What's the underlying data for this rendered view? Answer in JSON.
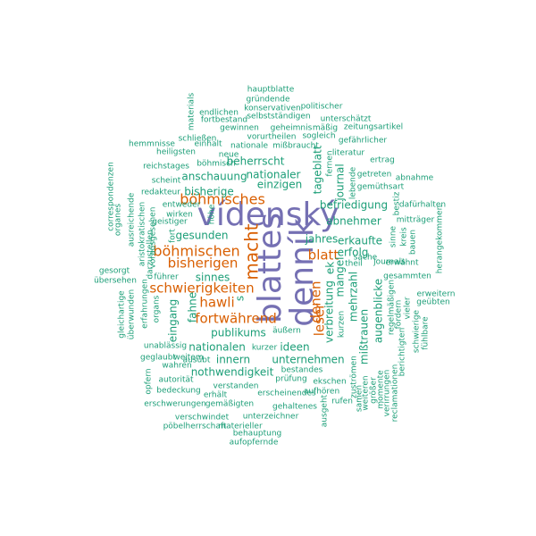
{
  "colors": {
    "purple": "#7570b3",
    "orange": "#d95f02",
    "teal": "#1b9e77",
    "background": "#ffffff"
  },
  "words": [
    {
      "id": "vidensky",
      "text": "vídenský",
      "color": "purple",
      "size": 36,
      "rotate": 0
    },
    {
      "id": "dennik",
      "text": "denník",
      "color": "purple",
      "size": 36,
      "rotate": -90
    },
    {
      "id": "blattes",
      "text": "blattes",
      "color": "purple",
      "size": 36,
      "rotate": -90
    },
    {
      "id": "macht",
      "text": "macht",
      "color": "orange",
      "size": 20,
      "rotate": -90
    },
    {
      "id": "bohmischen",
      "text": "böhmischen",
      "color": "orange",
      "size": 16,
      "rotate": 0
    },
    {
      "id": "bohmisches",
      "text": "böhmisches",
      "color": "orange",
      "size": 16,
      "rotate": 0
    },
    {
      "id": "bisherigen",
      "text": "bisherigen",
      "color": "orange",
      "size": 15,
      "rotate": 0
    },
    {
      "id": "schwierigkeiten",
      "text": "schwierigkeiten",
      "color": "orange",
      "size": 15,
      "rotate": 0
    },
    {
      "id": "hawli",
      "text": "hawli",
      "color": "orange",
      "size": 15,
      "rotate": 0
    },
    {
      "id": "fortwahrend",
      "text": "fortwährend",
      "color": "orange",
      "size": 15,
      "rotate": 0
    },
    {
      "id": "blatt",
      "text": "blatt",
      "color": "orange",
      "size": 15,
      "rotate": 0
    },
    {
      "id": "leser",
      "text": "leser",
      "color": "orange",
      "size": 15,
      "rotate": -90
    },
    {
      "id": "denen",
      "text": "denen",
      "color": "orange",
      "size": 15,
      "rotate": -90
    },
    {
      "id": "hauptblatte",
      "text": "hauptblatte",
      "color": "teal",
      "size": 9,
      "rotate": 0
    },
    {
      "id": "grundende",
      "text": "gründende",
      "color": "teal",
      "size": 9,
      "rotate": 0
    },
    {
      "id": "konservativen",
      "text": "konservativen",
      "color": "teal",
      "size": 9,
      "rotate": 0
    },
    {
      "id": "politischer",
      "text": "politischer",
      "color": "teal",
      "size": 9,
      "rotate": 0
    },
    {
      "id": "endlichen",
      "text": "endlichen",
      "color": "teal",
      "size": 9,
      "rotate": 0
    },
    {
      "id": "selbststandigen",
      "text": "selbstständigen",
      "color": "teal",
      "size": 9,
      "rotate": 0
    },
    {
      "id": "fortbestand",
      "text": "fortbestand",
      "color": "teal",
      "size": 9,
      "rotate": 0
    },
    {
      "id": "gewinnen",
      "text": "gewinnen",
      "color": "teal",
      "size": 9,
      "rotate": 0
    },
    {
      "id": "geheimnis",
      "text": "geheimnis",
      "color": "teal",
      "size": 9,
      "rotate": 0
    },
    {
      "id": "unterschatzt",
      "text": "unterschätzt",
      "color": "teal",
      "size": 9,
      "rotate": 0
    },
    {
      "id": "massig",
      "text": "mäßig",
      "color": "teal",
      "size": 9,
      "rotate": 0
    },
    {
      "id": "zeitungsartikel",
      "text": "zeitungsartikel",
      "color": "teal",
      "size": 9,
      "rotate": 0
    },
    {
      "id": "materials",
      "text": "materials",
      "color": "teal",
      "size": 9,
      "rotate": -90
    },
    {
      "id": "schliessen",
      "text": "schließen",
      "color": "teal",
      "size": 9,
      "rotate": 0
    },
    {
      "id": "vorurtheilen",
      "text": "vorurtheilen",
      "color": "teal",
      "size": 9,
      "rotate": 0
    },
    {
      "id": "sogleich",
      "text": "sogleich",
      "color": "teal",
      "size": 9,
      "rotate": 0
    },
    {
      "id": "gefahrlicher",
      "text": "gefährlicher",
      "color": "teal",
      "size": 9,
      "rotate": 0
    },
    {
      "id": "hemmnisse",
      "text": "hemmnisse",
      "color": "teal",
      "size": 9,
      "rotate": 0
    },
    {
      "id": "einhalt",
      "text": "einhalt",
      "color": "teal",
      "size": 9,
      "rotate": 0
    },
    {
      "id": "nationale",
      "text": "nationale",
      "color": "teal",
      "size": 9,
      "rotate": 0
    },
    {
      "id": "missbraucht",
      "text": "mißbraucht",
      "color": "teal",
      "size": 9,
      "rotate": 0
    },
    {
      "id": "heiligsten",
      "text": "heiligsten",
      "color": "teal",
      "size": 9,
      "rotate": 0
    },
    {
      "id": "neue",
      "text": "neue",
      "color": "teal",
      "size": 9,
      "rotate": 0
    },
    {
      "id": "literatur",
      "text": "literatur",
      "color": "teal",
      "size": 9,
      "rotate": 0
    },
    {
      "id": "ertrag",
      "text": "ertrag",
      "color": "teal",
      "size": 9,
      "rotate": 0
    },
    {
      "id": "reichstages",
      "text": "reichstages",
      "color": "teal",
      "size": 9,
      "rotate": 0
    },
    {
      "id": "bohmisch",
      "text": "böhmisch",
      "color": "teal",
      "size": 9,
      "rotate": 0
    },
    {
      "id": "beherrscht",
      "text": "beherrscht",
      "color": "teal",
      "size": 12,
      "rotate": 0
    },
    {
      "id": "tageblatt",
      "text": "tageblatt",
      "color": "teal",
      "size": 12,
      "rotate": -90
    },
    {
      "id": "fernen",
      "text": "fernen",
      "color": "teal",
      "size": 9,
      "rotate": -90
    },
    {
      "id": "getreten",
      "text": "getreten",
      "color": "teal",
      "size": 9,
      "rotate": 0
    },
    {
      "id": "abnahme",
      "text": "abnahme",
      "color": "teal",
      "size": 9,
      "rotate": 0
    },
    {
      "id": "correspondenzen",
      "text": "correspondenzen",
      "color": "teal",
      "size": 9,
      "rotate": -90
    },
    {
      "id": "scheint",
      "text": "scheint",
      "color": "teal",
      "size": 9,
      "rotate": 0
    },
    {
      "id": "anschauung",
      "text": "anschauung",
      "color": "teal",
      "size": 12,
      "rotate": 0
    },
    {
      "id": "nationaler",
      "text": "nationaler",
      "color": "teal",
      "size": 12,
      "rotate": 0
    },
    {
      "id": "journal",
      "text": "journal",
      "color": "teal",
      "size": 12,
      "rotate": -90
    },
    {
      "id": "lebende",
      "text": "lebende",
      "color": "teal",
      "size": 9,
      "rotate": -90
    },
    {
      "id": "gemuthsart",
      "text": "gemüthsart",
      "color": "teal",
      "size": 9,
      "rotate": 0
    },
    {
      "id": "redakteur",
      "text": "redakteur",
      "color": "teal",
      "size": 9,
      "rotate": 0
    },
    {
      "id": "bisherige",
      "text": "bisherige",
      "color": "teal",
      "size": 12,
      "rotate": 0
    },
    {
      "id": "einzigen",
      "text": "einzigen",
      "color": "teal",
      "size": 12,
      "rotate": 0
    },
    {
      "id": "bestiz",
      "text": "bestiz",
      "color": "teal",
      "size": 9,
      "rotate": -90
    },
    {
      "id": "entweder",
      "text": "entweder",
      "color": "teal",
      "size": 9,
      "rotate": 0
    },
    {
      "id": "befriedigung",
      "text": "befriedigung",
      "color": "teal",
      "size": 12,
      "rotate": 0
    },
    {
      "id": "dafurhalten",
      "text": "dafürhalten",
      "color": "teal",
      "size": 9,
      "rotate": 0
    },
    {
      "id": "organes",
      "text": "organes",
      "color": "teal",
      "size": 9,
      "rotate": -90
    },
    {
      "id": "ausreichende",
      "text": "ausreichende",
      "color": "teal",
      "size": 9,
      "rotate": -90
    },
    {
      "id": "wirken",
      "text": "wirken",
      "color": "teal",
      "size": 9,
      "rotate": 0
    },
    {
      "id": "hohe",
      "text": "höhe",
      "color": "teal",
      "size": 9,
      "rotate": -90
    },
    {
      "id": "mittrager",
      "text": "mitträger",
      "color": "teal",
      "size": 9,
      "rotate": 0
    },
    {
      "id": "geistiger",
      "text": "geistiger",
      "color": "teal",
      "size": 9,
      "rotate": 0
    },
    {
      "id": "abnehmer",
      "text": "abnehmer",
      "color": "teal",
      "size": 12,
      "rotate": 0
    },
    {
      "id": "aristokratischen",
      "text": "aristokratischen",
      "color": "teal",
      "size": 9,
      "rotate": -90
    },
    {
      "id": "vorausgesehen",
      "text": "vorausgesehen",
      "color": "teal",
      "size": 9,
      "rotate": -90
    },
    {
      "id": "fort",
      "text": "fort",
      "color": "teal",
      "size": 9,
      "rotate": -90
    },
    {
      "id": "gesunden",
      "text": "gesunden",
      "color": "teal",
      "size": 12,
      "rotate": 0
    },
    {
      "id": "jahres",
      "text": "jahres",
      "color": "teal",
      "size": 12,
      "rotate": 0
    },
    {
      "id": "erkaufte",
      "text": "erkaufte",
      "color": "teal",
      "size": 12,
      "rotate": 0
    },
    {
      "id": "sinne",
      "text": "sinne",
      "color": "teal",
      "size": 9,
      "rotate": -90
    },
    {
      "id": "kreis",
      "text": "kreis",
      "color": "teal",
      "size": 9,
      "rotate": -90
    },
    {
      "id": "bauen",
      "text": "bauen",
      "color": "teal",
      "size": 9,
      "rotate": -90
    },
    {
      "id": "herangekommen",
      "text": "herangekommen",
      "color": "teal",
      "size": 9,
      "rotate": -90
    },
    {
      "id": "darzustellen",
      "text": "darzustellen",
      "color": "teal",
      "size": 9,
      "rotate": -90
    },
    {
      "id": "erfolg",
      "text": "erfolg",
      "color": "teal",
      "size": 12,
      "rotate": 0
    },
    {
      "id": "sache",
      "text": "sache",
      "color": "teal",
      "size": 9,
      "rotate": 0
    },
    {
      "id": "gesorgt",
      "text": "gesorgt",
      "color": "teal",
      "size": 9,
      "rotate": 0
    },
    {
      "id": "uebersehen",
      "text": "übersehen",
      "color": "teal",
      "size": 9,
      "rotate": 0
    },
    {
      "id": "journals",
      "text": "journals",
      "color": "teal",
      "size": 9,
      "rotate": 0
    },
    {
      "id": "erwahnt",
      "text": "erwähnt",
      "color": "teal",
      "size": 9,
      "rotate": 0
    },
    {
      "id": "theil",
      "text": "theil",
      "color": "teal",
      "size": 9,
      "rotate": 0
    },
    {
      "id": "gesammten",
      "text": "gesammten",
      "color": "teal",
      "size": 9,
      "rotate": 0
    },
    {
      "id": "sinnes",
      "text": "sinnes",
      "color": "teal",
      "size": 12,
      "rotate": 0
    },
    {
      "id": "fuhrer",
      "text": "führer",
      "color": "teal",
      "size": 9,
      "rotate": 0
    },
    {
      "id": "ek",
      "text": "ek",
      "color": "teal",
      "size": 12,
      "rotate": -90
    },
    {
      "id": "mangel",
      "text": "mangel",
      "color": "teal",
      "size": 12,
      "rotate": -90
    },
    {
      "id": "erweitern",
      "text": "erweitern",
      "color": "teal",
      "size": 9,
      "rotate": 0
    },
    {
      "id": "geubten",
      "text": "geübten",
      "color": "teal",
      "size": 9,
      "rotate": 0
    },
    {
      "id": "gleichartige",
      "text": "gleichartige",
      "color": "teal",
      "size": 9,
      "rotate": -90
    },
    {
      "id": "uberwunden",
      "text": "überwunden",
      "color": "teal",
      "size": 9,
      "rotate": -90
    },
    {
      "id": "erfahrungen",
      "text": "erfahrungen",
      "color": "teal",
      "size": 9,
      "rotate": -90
    },
    {
      "id": "organs",
      "text": "organs",
      "color": "teal",
      "size": 9,
      "rotate": -90
    },
    {
      "id": "fahne",
      "text": "fahne",
      "color": "teal",
      "size": 12,
      "rotate": -90
    },
    {
      "id": "s",
      "text": "s",
      "color": "teal",
      "size": 12,
      "rotate": -90
    },
    {
      "id": "mehrzahl",
      "text": "mehrzahl",
      "color": "teal",
      "size": 12,
      "rotate": -90
    },
    {
      "id": "augenblicke",
      "text": "augenblicke",
      "color": "teal",
      "size": 12,
      "rotate": -90
    },
    {
      "id": "regelmassigen",
      "text": "regelmäßigen",
      "color": "teal",
      "size": 9,
      "rotate": -90
    },
    {
      "id": "fordern",
      "text": "fordern",
      "color": "teal",
      "size": 9,
      "rotate": -90
    },
    {
      "id": "vieler",
      "text": "vieler",
      "color": "teal",
      "size": 9,
      "rotate": -90
    },
    {
      "id": "verbreitung",
      "text": "verbreitung",
      "color": "teal",
      "size": 12,
      "rotate": -90
    },
    {
      "id": "eingang",
      "text": "eingang",
      "color": "teal",
      "size": 12,
      "rotate": -90
    },
    {
      "id": "publikums",
      "text": "publikums",
      "color": "teal",
      "size": 12,
      "rotate": 0
    },
    {
      "id": "aussern",
      "text": "äußern",
      "color": "teal",
      "size": 9,
      "rotate": 0
    },
    {
      "id": "misstrauen",
      "text": "mißtrauen",
      "color": "teal",
      "size": 12,
      "rotate": -90
    },
    {
      "id": "kurzen",
      "text": "kurzen",
      "color": "teal",
      "size": 9,
      "rotate": -90
    },
    {
      "id": "schwierige",
      "text": "schwierige",
      "color": "teal",
      "size": 9,
      "rotate": -90
    },
    {
      "id": "fuhlbare",
      "text": "fühlbare",
      "color": "teal",
      "size": 9,
      "rotate": -90
    },
    {
      "id": "unablassig",
      "text": "unablässig",
      "color": "teal",
      "size": 9,
      "rotate": 0
    },
    {
      "id": "nationalen",
      "text": "nationalen",
      "color": "teal",
      "size": 12,
      "rotate": 0
    },
    {
      "id": "kurzer",
      "text": "kurzer",
      "color": "teal",
      "size": 9,
      "rotate": 0
    },
    {
      "id": "ideen",
      "text": "ideen",
      "color": "teal",
      "size": 12,
      "rotate": 0
    },
    {
      "id": "ausubt",
      "text": "ausübt",
      "color": "teal",
      "size": 9,
      "rotate": 0
    },
    {
      "id": "geglaubt",
      "text": "geglaubt",
      "color": "teal",
      "size": 9,
      "rotate": 0
    },
    {
      "id": "weitem",
      "text": "weitem",
      "color": "teal",
      "size": 9,
      "rotate": 0
    },
    {
      "id": "innern",
      "text": "innern",
      "color": "teal",
      "size": 12,
      "rotate": 0
    },
    {
      "id": "unternehmen",
      "text": "unternehmen",
      "color": "teal",
      "size": 12,
      "rotate": 0
    },
    {
      "id": "berichtigten",
      "text": "berichtigten",
      "color": "teal",
      "size": 9,
      "rotate": -90
    },
    {
      "id": "wahren",
      "text": "wahren",
      "color": "teal",
      "size": 9,
      "rotate": 0
    },
    {
      "id": "nothwendigkeit",
      "text": "nothwendigkeit",
      "color": "teal",
      "size": 12,
      "rotate": 0
    },
    {
      "id": "bestandes",
      "text": "bestandes",
      "color": "teal",
      "size": 9,
      "rotate": 0
    },
    {
      "id": "zustromen",
      "text": "zuströmen",
      "color": "teal",
      "size": 9,
      "rotate": -90
    },
    {
      "id": "opfern",
      "text": "opfern",
      "color": "teal",
      "size": 9,
      "rotate": -90
    },
    {
      "id": "autoritat",
      "text": "autorität",
      "color": "teal",
      "size": 9,
      "rotate": 0
    },
    {
      "id": "prufung",
      "text": "prüfung",
      "color": "teal",
      "size": 9,
      "rotate": 0
    },
    {
      "id": "bedeckung",
      "text": "bedeckung",
      "color": "teal",
      "size": 9,
      "rotate": 0
    },
    {
      "id": "verstanden",
      "text": "verstanden",
      "color": "teal",
      "size": 9,
      "rotate": 0
    },
    {
      "id": "ekschen",
      "text": "ekschen",
      "color": "teal",
      "size": 9,
      "rotate": 0
    },
    {
      "id": "samen",
      "text": "samen",
      "color": "teal",
      "size": 9,
      "rotate": -90
    },
    {
      "id": "weiteren",
      "text": "weiteren",
      "color": "teal",
      "size": 9,
      "rotate": -90
    },
    {
      "id": "grosser",
      "text": "größer",
      "color": "teal",
      "size": 9,
      "rotate": -90
    },
    {
      "id": "momente",
      "text": "momente",
      "color": "teal",
      "size": 9,
      "rotate": -90
    },
    {
      "id": "verirrungen",
      "text": "verirrungen",
      "color": "teal",
      "size": 9,
      "rotate": -90
    },
    {
      "id": "reclamationen",
      "text": "reclamationen",
      "color": "teal",
      "size": 9,
      "rotate": -90
    },
    {
      "id": "erhalt",
      "text": "erhält",
      "color": "teal",
      "size": 9,
      "rotate": 0
    },
    {
      "id": "erscheinendes",
      "text": "erscheinendes",
      "color": "teal",
      "size": 9,
      "rotate": 0
    },
    {
      "id": "aufhoren",
      "text": "aufhören",
      "color": "teal",
      "size": 9,
      "rotate": 0
    },
    {
      "id": "erschwerungen",
      "text": "erschwerungen",
      "color": "teal",
      "size": 9,
      "rotate": 0
    },
    {
      "id": "gemassigten",
      "text": "gemäßigten",
      "color": "teal",
      "size": 9,
      "rotate": 0
    },
    {
      "id": "gehaltenes",
      "text": "gehaltenes",
      "color": "teal",
      "size": 9,
      "rotate": 0
    },
    {
      "id": "rufen",
      "text": "rufen",
      "color": "teal",
      "size": 9,
      "rotate": 0
    },
    {
      "id": "unterzeichner",
      "text": "unterzeichner",
      "color": "teal",
      "size": 9,
      "rotate": 0
    },
    {
      "id": "ausgeht",
      "text": "ausgeht",
      "color": "teal",
      "size": 9,
      "rotate": -90
    },
    {
      "id": "verschwindet",
      "text": "verschwindet",
      "color": "teal",
      "size": 9,
      "rotate": 0
    },
    {
      "id": "pobelherrschaft",
      "text": "pöbelherrschaft",
      "color": "teal",
      "size": 9,
      "rotate": 0
    },
    {
      "id": "materieller",
      "text": "materieller",
      "color": "teal",
      "size": 9,
      "rotate": 0
    },
    {
      "id": "behauptung",
      "text": "behauptung",
      "color": "teal",
      "size": 9,
      "rotate": 0
    },
    {
      "id": "aufopfernde",
      "text": "aufopfernde",
      "color": "teal",
      "size": 9,
      "rotate": 0
    }
  ]
}
